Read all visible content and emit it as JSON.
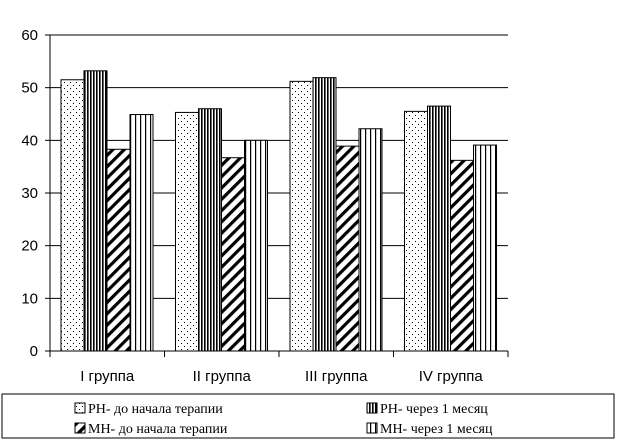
{
  "chart_data": {
    "type": "bar",
    "title": "",
    "xlabel": "",
    "ylabel": "",
    "ylim": [
      0,
      60
    ],
    "yticks": [
      0,
      10,
      20,
      30,
      40,
      50,
      60
    ],
    "grid": "horizontal",
    "legend_position": "bottom",
    "categories": [
      "I группа",
      "II группа",
      "III группа",
      "IV группа"
    ],
    "series": [
      {
        "name": "РН- до начала терапии",
        "values": [
          51.5,
          45.3,
          51.2,
          45.5
        ],
        "pattern": "dots"
      },
      {
        "name": "РН- через 1 месяц",
        "values": [
          53.2,
          46.0,
          51.9,
          46.5
        ],
        "pattern": "dense-vertical"
      },
      {
        "name": "МН- до начала терапии",
        "values": [
          38.3,
          36.7,
          38.9,
          36.2
        ],
        "pattern": "diagonal"
      },
      {
        "name": "МН- через 1 месяц",
        "values": [
          44.9,
          40.0,
          42.2,
          39.1
        ],
        "pattern": "vertical"
      }
    ]
  }
}
